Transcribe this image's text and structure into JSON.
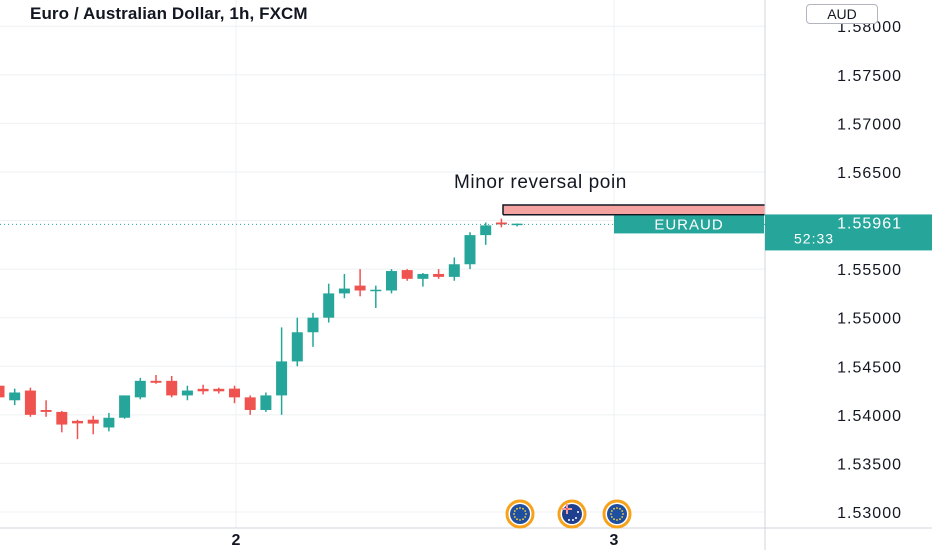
{
  "header": {
    "title": "Euro / Australian Dollar, 1h, FXCM",
    "currency": "AUD"
  },
  "annotation": {
    "text": "Minor reversal poin"
  },
  "price_label": {
    "symbol": "EURAUD",
    "price": "1.55961",
    "countdown": "52:33"
  },
  "colors": {
    "up": "#26a69a",
    "down": "#ef5350",
    "label_bg": "#26a69a",
    "zone_fill": "#f5a3a0",
    "grid": "#eef0f3",
    "axis_text": "#131722"
  },
  "icons": [
    "eu-flag-icon",
    "au-flag-icon",
    "eu-flag-icon"
  ],
  "chart_data": {
    "type": "candlestick",
    "title": "Euro / Australian Dollar, 1h, FXCM",
    "y_axis": {
      "ticks": [
        "1.58000",
        "1.57500",
        "1.57000",
        "1.56500",
        "1.56000",
        "1.55500",
        "1.55000",
        "1.54500",
        "1.54000",
        "1.53500",
        "1.53000"
      ],
      "ylim": [
        1.5265,
        1.5827
      ]
    },
    "x_axis": {
      "ticks": [
        "2",
        "3"
      ]
    },
    "candles": [
      {
        "o": 1.543,
        "h": 1.5435,
        "l": 1.5412,
        "c": 1.5418
      },
      {
        "o": 1.5415,
        "h": 1.5427,
        "l": 1.541,
        "c": 1.5423
      },
      {
        "o": 1.5425,
        "h": 1.5428,
        "l": 1.5398,
        "c": 1.54
      },
      {
        "o": 1.5405,
        "h": 1.5415,
        "l": 1.5398,
        "c": 1.5403
      },
      {
        "o": 1.5403,
        "h": 1.5404,
        "l": 1.5382,
        "c": 1.539
      },
      {
        "o": 1.5393,
        "h": 1.5395,
        "l": 1.5375,
        "c": 1.5392
      },
      {
        "o": 1.5395,
        "h": 1.5399,
        "l": 1.538,
        "c": 1.5391
      },
      {
        "o": 1.5387,
        "h": 1.5402,
        "l": 1.5383,
        "c": 1.5397
      },
      {
        "o": 1.5397,
        "h": 1.542,
        "l": 1.5396,
        "c": 1.542
      },
      {
        "o": 1.5418,
        "h": 1.5438,
        "l": 1.5416,
        "c": 1.5435
      },
      {
        "o": 1.5435,
        "h": 1.5441,
        "l": 1.5432,
        "c": 1.5433
      },
      {
        "o": 1.5435,
        "h": 1.544,
        "l": 1.5418,
        "c": 1.542
      },
      {
        "o": 1.542,
        "h": 1.543,
        "l": 1.5415,
        "c": 1.5425
      },
      {
        "o": 1.5426,
        "h": 1.5431,
        "l": 1.5421,
        "c": 1.5425
      },
      {
        "o": 1.5426,
        "h": 1.5428,
        "l": 1.5422,
        "c": 1.5425
      },
      {
        "o": 1.5427,
        "h": 1.543,
        "l": 1.5412,
        "c": 1.5418
      },
      {
        "o": 1.5418,
        "h": 1.542,
        "l": 1.54,
        "c": 1.5405
      },
      {
        "o": 1.5405,
        "h": 1.5423,
        "l": 1.5403,
        "c": 1.542
      },
      {
        "o": 1.542,
        "h": 1.549,
        "l": 1.54,
        "c": 1.5455
      },
      {
        "o": 1.5455,
        "h": 1.55,
        "l": 1.545,
        "c": 1.5485
      },
      {
        "o": 1.5485,
        "h": 1.5505,
        "l": 1.547,
        "c": 1.55
      },
      {
        "o": 1.55,
        "h": 1.5535,
        "l": 1.5495,
        "c": 1.5525
      },
      {
        "o": 1.5525,
        "h": 1.5545,
        "l": 1.552,
        "c": 1.553
      },
      {
        "o": 1.5533,
        "h": 1.555,
        "l": 1.5522,
        "c": 1.5528
      },
      {
        "o": 1.5528,
        "h": 1.5533,
        "l": 1.551,
        "c": 1.5528
      },
      {
        "o": 1.5528,
        "h": 1.555,
        "l": 1.5525,
        "c": 1.5548
      },
      {
        "o": 1.5549,
        "h": 1.555,
        "l": 1.5538,
        "c": 1.554
      },
      {
        "o": 1.554,
        "h": 1.5546,
        "l": 1.5532,
        "c": 1.5545
      },
      {
        "o": 1.5545,
        "h": 1.555,
        "l": 1.554,
        "c": 1.5542
      },
      {
        "o": 1.5542,
        "h": 1.5562,
        "l": 1.5538,
        "c": 1.5555
      },
      {
        "o": 1.5555,
        "h": 1.5588,
        "l": 1.555,
        "c": 1.5585
      },
      {
        "o": 1.5585,
        "h": 1.5598,
        "l": 1.5575,
        "c": 1.5595
      },
      {
        "o": 1.5598,
        "h": 1.5602,
        "l": 1.5593,
        "c": 1.5596
      },
      {
        "o": 1.5596,
        "h": 1.5597,
        "l": 1.5594,
        "c": 1.5596
      }
    ]
  }
}
